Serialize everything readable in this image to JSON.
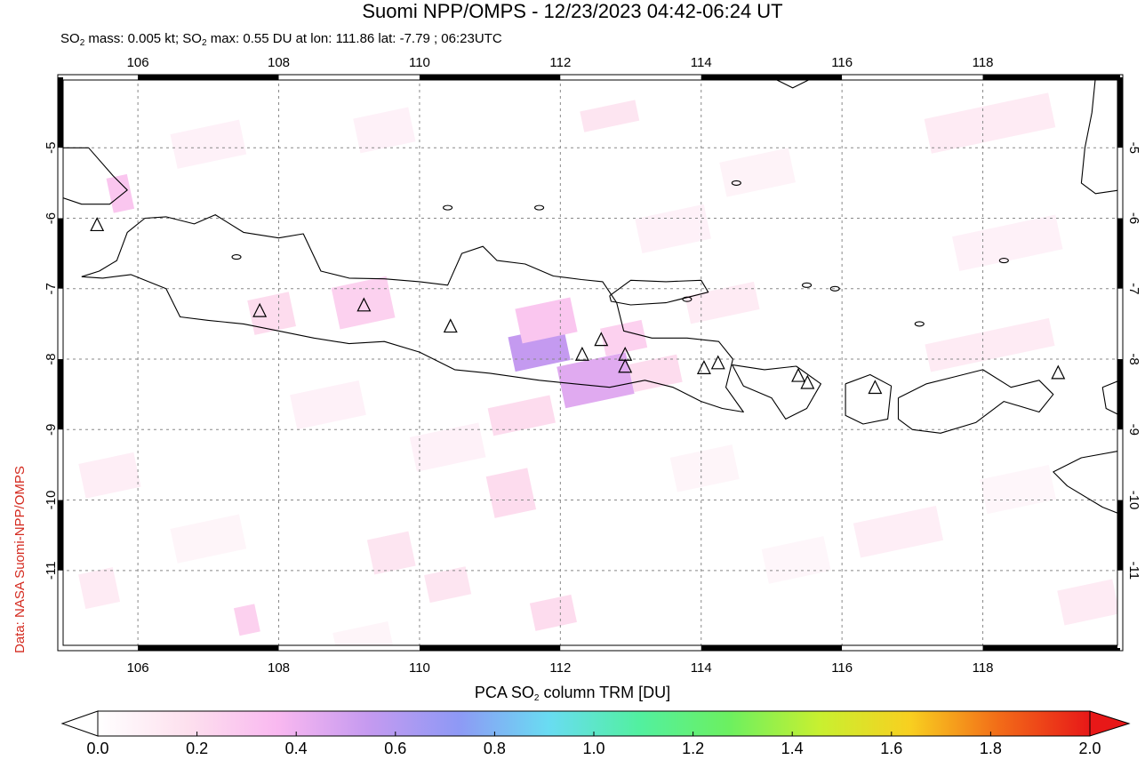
{
  "title": "Suomi NPP/OMPS - 12/23/2023 04:42-06:24 UT",
  "subtitle": {
    "mass_prefix": "SO",
    "mass_sub": "2",
    "mass_text": " mass: 0.005 kt; SO",
    "max_sub": "2",
    "max_text": " max: 0.55 DU at lon: 111.86 lat: -7.79 ; 06:23UTC"
  },
  "credit": "Data: NASA Suomi-NPP/OMPS",
  "colorbar": {
    "title_prefix": "PCA SO",
    "title_sub": "2",
    "title_suffix": " column TRM [DU]",
    "ticks": [
      "0.0",
      "0.2",
      "0.4",
      "0.6",
      "0.8",
      "1.0",
      "1.2",
      "1.4",
      "1.6",
      "1.8",
      "2.0"
    ],
    "colors": [
      "#ffffff",
      "#fde0ee",
      "#f9b8f0",
      "#c59af0",
      "#8e99f5",
      "#69dcf2",
      "#52f0a0",
      "#6cf060",
      "#c8f030",
      "#f8d020",
      "#f26b18",
      "#e81818"
    ]
  },
  "map": {
    "lon_range": [
      104.9,
      119.95
    ],
    "lat_range": [
      -12.1,
      -4.0
    ],
    "lon_ticks": [
      "106",
      "108",
      "110",
      "112",
      "114",
      "116",
      "118"
    ],
    "lat_ticks": [
      "-5",
      "-6",
      "-7",
      "-8",
      "-9",
      "-10",
      "-11"
    ],
    "volcanoes": [
      {
        "lon": 105.42,
        "lat": -6.1
      },
      {
        "lon": 107.73,
        "lat": -7.32
      },
      {
        "lon": 109.21,
        "lat": -7.24
      },
      {
        "lon": 110.44,
        "lat": -7.54
      },
      {
        "lon": 112.31,
        "lat": -7.94
      },
      {
        "lon": 112.58,
        "lat": -7.73
      },
      {
        "lon": 112.92,
        "lat": -7.94
      },
      {
        "lon": 112.92,
        "lat": -8.11
      },
      {
        "lon": 114.04,
        "lat": -8.13
      },
      {
        "lon": 114.24,
        "lat": -8.06
      },
      {
        "lon": 115.38,
        "lat": -8.24
      },
      {
        "lon": 115.51,
        "lat": -8.34
      },
      {
        "lon": 116.47,
        "lat": -8.41
      },
      {
        "lon": 119.07,
        "lat": -8.2
      }
    ],
    "so2_pixels": [
      {
        "lon": 111.3,
        "lat": -7.6,
        "w": 0.8,
        "h": 0.5,
        "v": 0.55
      },
      {
        "lon": 112.0,
        "lat": -8.0,
        "w": 1.0,
        "h": 0.6,
        "v": 0.45
      },
      {
        "lon": 111.4,
        "lat": -7.2,
        "w": 0.8,
        "h": 0.5,
        "v": 0.3
      },
      {
        "lon": 112.6,
        "lat": -7.5,
        "w": 0.6,
        "h": 0.4,
        "v": 0.25
      },
      {
        "lon": 108.8,
        "lat": -6.9,
        "w": 0.8,
        "h": 0.6,
        "v": 0.25
      },
      {
        "lon": 107.6,
        "lat": -7.1,
        "w": 0.6,
        "h": 0.5,
        "v": 0.2
      },
      {
        "lon": 105.6,
        "lat": -5.4,
        "w": 0.3,
        "h": 0.5,
        "v": 0.3
      },
      {
        "lon": 111.0,
        "lat": -8.6,
        "w": 0.9,
        "h": 0.4,
        "v": 0.2
      },
      {
        "lon": 111.0,
        "lat": -9.6,
        "w": 0.6,
        "h": 0.6,
        "v": 0.2
      },
      {
        "lon": 113.0,
        "lat": -8.0,
        "w": 0.7,
        "h": 0.4,
        "v": 0.2
      },
      {
        "lon": 107.4,
        "lat": -11.5,
        "w": 0.3,
        "h": 0.4,
        "v": 0.25
      },
      {
        "lon": 111.6,
        "lat": -11.4,
        "w": 0.6,
        "h": 0.4,
        "v": 0.2
      },
      {
        "lon": 109.3,
        "lat": -10.5,
        "w": 0.6,
        "h": 0.5,
        "v": 0.15
      },
      {
        "lon": 110.1,
        "lat": -11.0,
        "w": 0.6,
        "h": 0.4,
        "v": 0.15
      },
      {
        "lon": 112.3,
        "lat": -4.4,
        "w": 0.8,
        "h": 0.3,
        "v": 0.15
      },
      {
        "lon": 117.2,
        "lat": -4.4,
        "w": 1.8,
        "h": 0.5,
        "v": 0.12
      },
      {
        "lon": 117.2,
        "lat": -7.6,
        "w": 1.8,
        "h": 0.4,
        "v": 0.12
      },
      {
        "lon": 113.8,
        "lat": -7.0,
        "w": 1.0,
        "h": 0.4,
        "v": 0.12
      },
      {
        "lon": 116.2,
        "lat": -10.2,
        "w": 1.2,
        "h": 0.5,
        "v": 0.1
      },
      {
        "lon": 119.1,
        "lat": -11.2,
        "w": 0.8,
        "h": 0.5,
        "v": 0.12
      },
      {
        "lon": 105.2,
        "lat": -9.4,
        "w": 0.8,
        "h": 0.5,
        "v": 0.1
      },
      {
        "lon": 105.2,
        "lat": -11.0,
        "w": 0.5,
        "h": 0.5,
        "v": 0.12
      },
      {
        "lon": 106.5,
        "lat": -4.7,
        "w": 1.0,
        "h": 0.5,
        "v": 0.08
      },
      {
        "lon": 109.1,
        "lat": -4.5,
        "w": 0.8,
        "h": 0.5,
        "v": 0.08
      },
      {
        "lon": 113.1,
        "lat": -5.9,
        "w": 1.0,
        "h": 0.5,
        "v": 0.08
      },
      {
        "lon": 114.3,
        "lat": -5.1,
        "w": 1.0,
        "h": 0.5,
        "v": 0.07
      },
      {
        "lon": 117.6,
        "lat": -6.1,
        "w": 1.5,
        "h": 0.5,
        "v": 0.08
      },
      {
        "lon": 108.2,
        "lat": -8.4,
        "w": 1.0,
        "h": 0.5,
        "v": 0.08
      },
      {
        "lon": 109.9,
        "lat": -9.0,
        "w": 1.0,
        "h": 0.5,
        "v": 0.08
      },
      {
        "lon": 113.6,
        "lat": -9.3,
        "w": 0.9,
        "h": 0.5,
        "v": 0.06
      },
      {
        "lon": 106.5,
        "lat": -10.3,
        "w": 1.0,
        "h": 0.5,
        "v": 0.06
      },
      {
        "lon": 114.9,
        "lat": -10.6,
        "w": 0.9,
        "h": 0.5,
        "v": 0.05
      },
      {
        "lon": 108.8,
        "lat": -11.8,
        "w": 0.8,
        "h": 0.4,
        "v": 0.06
      },
      {
        "lon": 118.0,
        "lat": -9.6,
        "w": 1.0,
        "h": 0.5,
        "v": 0.05
      }
    ]
  }
}
